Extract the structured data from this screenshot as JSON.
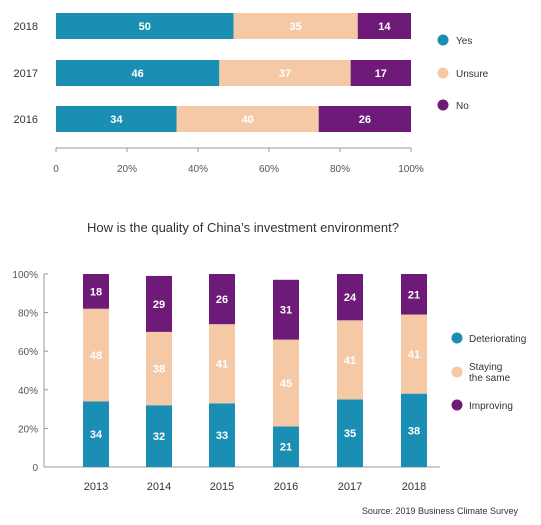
{
  "colors": {
    "teal": "#1a8fb3",
    "peach": "#f6c9a6",
    "purple": "#6e1a78",
    "axis": "#999999",
    "text_on_teal": "#ffffff",
    "text_on_peach": "#ffffff",
    "text_on_purple": "#ffffff"
  },
  "chart_data": [
    {
      "type": "bar",
      "orientation": "horizontal",
      "stacked": true,
      "title": "",
      "categories": [
        "2018",
        "2017",
        "2016"
      ],
      "series": [
        {
          "name": "Yes",
          "values": [
            50,
            46,
            34
          ],
          "color": "teal"
        },
        {
          "name": "Unsure",
          "values": [
            35,
            37,
            40
          ],
          "color": "peach"
        },
        {
          "name": "No",
          "values": [
            14,
            17,
            26
          ],
          "color": "purple"
        }
      ],
      "x_ticks": [
        "0",
        "20%",
        "40%",
        "60%",
        "80%",
        "100%"
      ],
      "xlim": [
        0,
        100
      ],
      "legend": "right",
      "grid": false
    },
    {
      "type": "bar",
      "orientation": "vertical",
      "stacked": true,
      "title": "How is the quality of China’s investment environment?",
      "categories": [
        "2013",
        "2014",
        "2015",
        "2016",
        "2017",
        "2018"
      ],
      "series": [
        {
          "name": "Deteriorating",
          "values": [
            34,
            32,
            33,
            21,
            35,
            38
          ],
          "color": "teal"
        },
        {
          "name": "Staying\nthe same",
          "values": [
            48,
            38,
            41,
            45,
            41,
            41
          ],
          "color": "peach"
        },
        {
          "name": "Improving",
          "values": [
            18,
            29,
            26,
            31,
            24,
            21
          ],
          "color": "purple"
        }
      ],
      "y_ticks": [
        "0",
        "20%",
        "40%",
        "60%",
        "80%",
        "100%"
      ],
      "ylim": [
        0,
        100
      ],
      "legend": "right",
      "grid": false
    }
  ],
  "source": "Source: 2019 Business Climate Survey"
}
